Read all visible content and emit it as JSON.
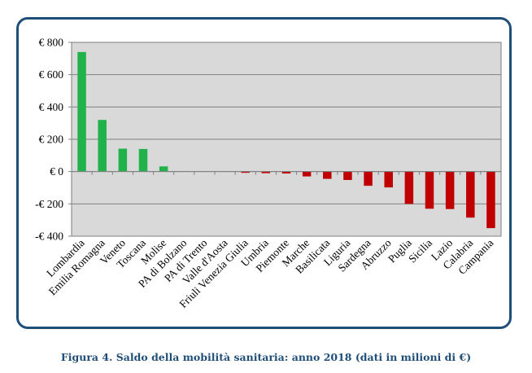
{
  "chart_data": {
    "type": "bar",
    "title": "",
    "xlabel": "",
    "ylabel": "",
    "ylim": [
      -400,
      800
    ],
    "grid": true,
    "y_ticks": [
      800,
      600,
      400,
      200,
      0,
      -200,
      -400
    ],
    "y_tick_labels": [
      "€ 800",
      "€ 600",
      "€ 400",
      "€ 200",
      "€ 0",
      "-€ 200",
      "-€ 400"
    ],
    "categories": [
      "Lombardia",
      "Emilia Romagna",
      "Veneto",
      "Toscana",
      "Molise",
      "PA di Bolzano",
      "PA di Trento",
      "Valle d'Aosta",
      "Friuli Venezia Giulia",
      "Umbria",
      "Piemonte",
      "Marche",
      "Basilicata",
      "Liguria",
      "Sardegna",
      "Abruzzo",
      "Puglia",
      "Sicilia",
      "Lazio",
      "Calabria",
      "Campania"
    ],
    "values": [
      740,
      320,
      142,
      140,
      32,
      0,
      0,
      0,
      -5,
      -10,
      -12,
      -30,
      -45,
      -52,
      -88,
      -98,
      -200,
      -230,
      -232,
      -285,
      -350
    ],
    "colors": {
      "positive": "#22b24c",
      "negative": "#c00000"
    }
  },
  "caption": "Figura 4. Saldo della mobilità sanitaria: anno 2018 (dati in milioni di €)"
}
